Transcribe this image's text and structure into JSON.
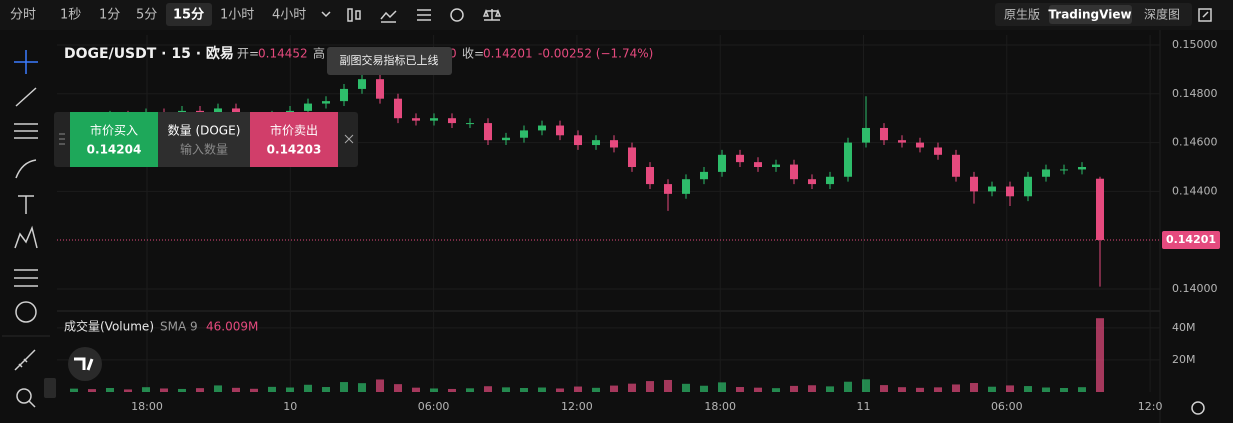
{
  "toolbar": {
    "intervals": [
      "分时",
      "1秒",
      "1分",
      "5分",
      "15分",
      "1小时",
      "4小时"
    ],
    "active": "15分",
    "views": [
      "原生版",
      "TradingView",
      "深度图"
    ],
    "active_view": "TradingView"
  },
  "legend": {
    "symbol": "DOGE/USDT · 15 · 欧易",
    "open_label": "开=",
    "high_label": "高",
    "hidden_tail": "0",
    "close_label": "收=",
    "change": "-0.00252 (−1.74%)"
  },
  "tooltip": "副图交易指标已上线",
  "trade_panel": {
    "buy_label": "市价买入",
    "buy_price": "0.14204",
    "qty_label": "数量 (DOGE)",
    "qty_placeholder": "输入数量",
    "sell_label": "市价卖出",
    "sell_price": "0.14203"
  },
  "volume_legend": {
    "title": "成交量(Volume)",
    "sma": "SMA 9",
    "sma_value": "46.009M"
  },
  "time_labels": [
    "18:00",
    "10",
    "06:00",
    "12:00",
    "18:00",
    "11",
    "06:00",
    "12:0"
  ],
  "chart_data": {
    "type": "candlestick",
    "up_color": "#2ebd6b",
    "down_color": "#e54a7e",
    "grid": true,
    "ylim": [
      0.13914,
      0.15041
    ],
    "yticks": [
      {
        "value": 0.15,
        "label": "0.15000"
      },
      {
        "value": 0.148,
        "label": "0.14800"
      },
      {
        "value": 0.146,
        "label": "0.14600"
      },
      {
        "value": 0.144,
        "label": "0.14400"
      },
      {
        "value": 0.14,
        "label": "0.14000"
      }
    ],
    "open": [
      0.1469,
      0.147,
      0.1468,
      0.1471,
      0.1469,
      0.1472,
      0.147,
      0.1473,
      0.1471,
      0.1474,
      0.147,
      0.1468,
      0.1471,
      0.1473,
      0.1476,
      0.1477,
      0.1482,
      0.1486,
      0.1478,
      0.147,
      0.1469,
      0.147,
      0.1468,
      0.1468,
      0.1461,
      0.1462,
      0.1465,
      0.1467,
      0.1463,
      0.1459,
      0.1461,
      0.1458,
      0.145,
      0.1443,
      0.1439,
      0.1445,
      0.1448,
      0.1455,
      0.1452,
      0.145,
      0.1451,
      0.1445,
      0.1443,
      0.1446,
      0.146,
      0.1466,
      0.1461,
      0.146,
      0.1458,
      0.1455,
      0.1446,
      0.144,
      0.1442,
      0.1438,
      0.1446,
      0.1449,
      0.1449,
      0.14452
    ],
    "high": [
      0.1472,
      0.1472,
      0.1473,
      0.1473,
      0.1474,
      0.1474,
      0.1475,
      0.1475,
      0.1476,
      0.1476,
      0.1472,
      0.1473,
      0.1475,
      0.1478,
      0.1479,
      0.1484,
      0.149,
      0.1488,
      0.148,
      0.1472,
      0.1472,
      0.1472,
      0.147,
      0.147,
      0.1464,
      0.1467,
      0.1469,
      0.1469,
      0.1465,
      0.1463,
      0.1463,
      0.146,
      0.1452,
      0.1445,
      0.1447,
      0.145,
      0.1457,
      0.1457,
      0.1454,
      0.1453,
      0.1453,
      0.1447,
      0.1448,
      0.1462,
      0.1479,
      0.1468,
      0.1463,
      0.1462,
      0.146,
      0.1457,
      0.1448,
      0.1444,
      0.1444,
      0.1448,
      0.1451,
      0.1451,
      0.1452,
      0.1446
    ],
    "low": [
      0.1467,
      0.1466,
      0.1466,
      0.1467,
      0.1467,
      0.1468,
      0.1468,
      0.1469,
      0.1469,
      0.1468,
      0.1466,
      0.1466,
      0.1469,
      0.1471,
      0.1474,
      0.1475,
      0.148,
      0.1476,
      0.1468,
      0.1467,
      0.1467,
      0.1466,
      0.1466,
      0.1459,
      0.1459,
      0.146,
      0.1463,
      0.1461,
      0.1457,
      0.1457,
      0.1456,
      0.1448,
      0.1441,
      0.1432,
      0.1437,
      0.1443,
      0.1446,
      0.145,
      0.1448,
      0.1448,
      0.1443,
      0.1441,
      0.1441,
      0.1444,
      0.1458,
      0.1459,
      0.1458,
      0.1456,
      0.1453,
      0.1444,
      0.1435,
      0.1438,
      0.1434,
      0.1436,
      0.1444,
      0.1447,
      0.1447,
      0.1401
    ],
    "close": [
      0.147,
      0.1468,
      0.1471,
      0.1469,
      0.1472,
      0.147,
      0.1473,
      0.1471,
      0.1474,
      0.147,
      0.1468,
      0.1471,
      0.1473,
      0.1476,
      0.1477,
      0.1482,
      0.1486,
      0.1478,
      0.147,
      0.1469,
      0.147,
      0.1468,
      0.1468,
      0.1461,
      0.1462,
      0.1465,
      0.1467,
      0.1463,
      0.1459,
      0.1461,
      0.1458,
      0.145,
      0.1443,
      0.1439,
      0.1445,
      0.1448,
      0.1455,
      0.1452,
      0.145,
      0.1451,
      0.1445,
      0.1443,
      0.1446,
      0.146,
      0.1466,
      0.1461,
      0.146,
      0.1458,
      0.1455,
      0.1446,
      0.144,
      0.1442,
      0.1438,
      0.1446,
      0.1449,
      0.1449,
      0.145,
      0.14201
    ],
    "volume": [
      2100000,
      1800000,
      2500000,
      1600000,
      3000000,
      2200000,
      1900000,
      2400000,
      4100000,
      2600000,
      2000000,
      3200000,
      2800000,
      4500000,
      3100000,
      6200000,
      5500000,
      7800000,
      4900000,
      2700000,
      2200000,
      1900000,
      2300000,
      3600000,
      2900000,
      2500000,
      2800000,
      2200000,
      3400000,
      2600000,
      4000000,
      5200000,
      6800000,
      7500000,
      5100000,
      3900000,
      6000000,
      3100000,
      2700000,
      2400000,
      3800000,
      4200000,
      3500000,
      6400000,
      7900000,
      4300000,
      3000000,
      2600000,
      2900000,
      4700000,
      5600000,
      3300000,
      4100000,
      3700000,
      2800000,
      2500000,
      3000000,
      46000000
    ],
    "vlim": [
      0,
      48000000
    ],
    "vticks": [
      {
        "value": 40000000,
        "label": "40M"
      },
      {
        "value": 20000000,
        "label": "20M"
      }
    ]
  }
}
